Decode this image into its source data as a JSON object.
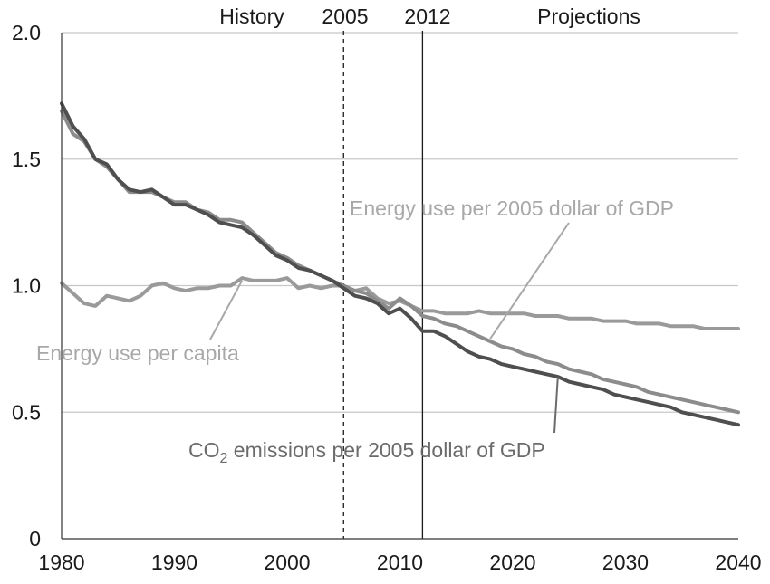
{
  "chart_data": {
    "type": "line",
    "title": "",
    "xlabel": "",
    "ylabel": "",
    "xlim": [
      1980,
      2040
    ],
    "ylim": [
      0,
      2.0
    ],
    "grid": true,
    "x_ticks": [
      "1980",
      "1990",
      "2000",
      "2010",
      "2020",
      "2030",
      "2040"
    ],
    "y_ticks": [
      "0",
      "0.5",
      "1.0",
      "1.5",
      "2.0"
    ],
    "header_labels": {
      "history": "History",
      "year_2005": "2005",
      "year_2012": "2012",
      "projections": "Projections"
    },
    "reference_lines": [
      {
        "name": "2005",
        "x": 2005,
        "style": "dashed"
      },
      {
        "name": "2012",
        "x": 2012,
        "style": "solid"
      }
    ],
    "series": [
      {
        "name": "Energy use per capita",
        "color": "#9a9a9a",
        "x": [
          1980,
          1981,
          1982,
          1983,
          1984,
          1985,
          1986,
          1987,
          1988,
          1989,
          1990,
          1991,
          1992,
          1993,
          1994,
          1995,
          1996,
          1997,
          1998,
          1999,
          2000,
          2001,
          2002,
          2003,
          2004,
          2005,
          2006,
          2007,
          2008,
          2009,
          2010,
          2011,
          2012,
          2013,
          2014,
          2015,
          2016,
          2017,
          2018,
          2019,
          2020,
          2021,
          2022,
          2023,
          2024,
          2025,
          2026,
          2027,
          2028,
          2029,
          2030,
          2031,
          2032,
          2033,
          2034,
          2035,
          2036,
          2037,
          2038,
          2039,
          2040
        ],
        "values": [
          1.01,
          0.97,
          0.93,
          0.92,
          0.96,
          0.95,
          0.94,
          0.96,
          1.0,
          1.01,
          0.99,
          0.98,
          0.99,
          0.99,
          1.0,
          1.0,
          1.03,
          1.02,
          1.02,
          1.02,
          1.03,
          0.99,
          1.0,
          0.99,
          1.0,
          1.0,
          0.98,
          0.99,
          0.95,
          0.93,
          0.94,
          0.92,
          0.9,
          0.9,
          0.89,
          0.89,
          0.89,
          0.9,
          0.89,
          0.89,
          0.89,
          0.89,
          0.88,
          0.88,
          0.88,
          0.87,
          0.87,
          0.87,
          0.86,
          0.86,
          0.86,
          0.85,
          0.85,
          0.85,
          0.84,
          0.84,
          0.84,
          0.83,
          0.83,
          0.83,
          0.83
        ]
      },
      {
        "name": "Energy use per 2005 dollar of GDP",
        "color": "#8c8c8c",
        "x": [
          1980,
          1981,
          1982,
          1983,
          1984,
          1985,
          1986,
          1987,
          1988,
          1989,
          1990,
          1991,
          1992,
          1993,
          1994,
          1995,
          1996,
          1997,
          1998,
          1999,
          2000,
          2001,
          2002,
          2003,
          2004,
          2005,
          2006,
          2007,
          2008,
          2009,
          2010,
          2011,
          2012,
          2013,
          2014,
          2015,
          2016,
          2017,
          2018,
          2019,
          2020,
          2021,
          2022,
          2023,
          2024,
          2025,
          2026,
          2027,
          2028,
          2029,
          2030,
          2031,
          2032,
          2033,
          2034,
          2035,
          2036,
          2037,
          2038,
          2039,
          2040
        ],
        "values": [
          1.69,
          1.6,
          1.57,
          1.5,
          1.47,
          1.42,
          1.37,
          1.37,
          1.37,
          1.35,
          1.33,
          1.33,
          1.3,
          1.29,
          1.26,
          1.26,
          1.25,
          1.21,
          1.17,
          1.13,
          1.11,
          1.08,
          1.06,
          1.04,
          1.02,
          1.0,
          0.98,
          0.97,
          0.94,
          0.91,
          0.95,
          0.92,
          0.88,
          0.87,
          0.85,
          0.84,
          0.82,
          0.8,
          0.78,
          0.76,
          0.75,
          0.73,
          0.72,
          0.7,
          0.69,
          0.67,
          0.66,
          0.65,
          0.63,
          0.62,
          0.61,
          0.6,
          0.58,
          0.57,
          0.56,
          0.55,
          0.54,
          0.53,
          0.52,
          0.51,
          0.5
        ]
      },
      {
        "name": "CO2 emissions per 2005 dollar of GDP",
        "color": "#4f4f4f",
        "x": [
          1980,
          1981,
          1982,
          1983,
          1984,
          1985,
          1986,
          1987,
          1988,
          1989,
          1990,
          1991,
          1992,
          1993,
          1994,
          1995,
          1996,
          1997,
          1998,
          1999,
          2000,
          2001,
          2002,
          2003,
          2004,
          2005,
          2006,
          2007,
          2008,
          2009,
          2010,
          2011,
          2012,
          2013,
          2014,
          2015,
          2016,
          2017,
          2018,
          2019,
          2020,
          2021,
          2022,
          2023,
          2024,
          2025,
          2026,
          2027,
          2028,
          2029,
          2030,
          2031,
          2032,
          2033,
          2034,
          2035,
          2036,
          2037,
          2038,
          2039,
          2040
        ],
        "values": [
          1.72,
          1.63,
          1.58,
          1.5,
          1.48,
          1.42,
          1.38,
          1.37,
          1.38,
          1.35,
          1.32,
          1.32,
          1.3,
          1.28,
          1.25,
          1.24,
          1.23,
          1.2,
          1.16,
          1.12,
          1.1,
          1.07,
          1.06,
          1.04,
          1.02,
          0.99,
          0.96,
          0.95,
          0.93,
          0.89,
          0.91,
          0.87,
          0.82,
          0.82,
          0.8,
          0.77,
          0.74,
          0.72,
          0.71,
          0.69,
          0.68,
          0.67,
          0.66,
          0.65,
          0.64,
          0.62,
          0.61,
          0.6,
          0.59,
          0.57,
          0.56,
          0.55,
          0.54,
          0.53,
          0.52,
          0.5,
          0.49,
          0.48,
          0.47,
          0.46,
          0.45
        ]
      }
    ],
    "series_labels": [
      {
        "series": 0,
        "text": "Energy use per capita",
        "color": "#a8a8a8",
        "leader_from_year": 1996,
        "leader_from_value": 1.02
      },
      {
        "series": 1,
        "text": "Energy use per 2005 dollar of GDP",
        "color": "#a8a8a8",
        "leader_from_year": 2018,
        "leader_from_value": 0.79
      },
      {
        "series": 2,
        "text_main": "CO",
        "text_sub": "2",
        "text_rest": " emissions per 2005 dollar of GDP",
        "color": "#6b6b6b",
        "leader_from_year": 2024,
        "leader_from_value": 0.64
      }
    ]
  }
}
